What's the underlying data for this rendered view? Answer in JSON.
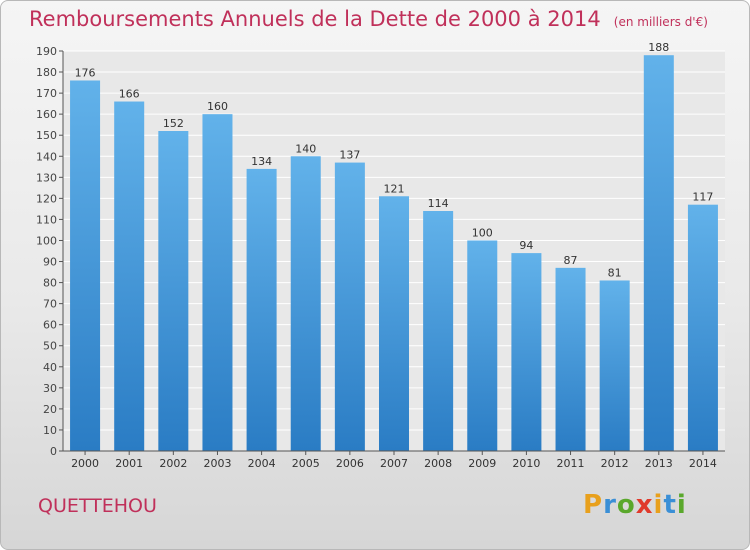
{
  "title": "Remboursements Annuels de la Dette de 2000 à 2014",
  "subtitle": "(en milliers d'€)",
  "commune": "QUETTEHOU",
  "logo": {
    "letters": [
      "P",
      "r",
      "o",
      "x",
      "i",
      "t",
      "i"
    ],
    "colors": [
      "#e8a01c",
      "#3a8fd6",
      "#5aa82c",
      "#e03a2c",
      "#e8a01c",
      "#3a8fd6",
      "#5aa82c"
    ]
  },
  "colors": {
    "bar_top": "#62b2ea",
    "bar_bottom": "#2a7cc4",
    "text": "#c0305a",
    "grid": "#ffffff"
  },
  "chart_data": {
    "type": "bar",
    "title": "Remboursements Annuels de la Dette de 2000 à 2014",
    "subtitle": "(en milliers d'€)",
    "categories": [
      "2000",
      "2001",
      "2002",
      "2003",
      "2004",
      "2005",
      "2006",
      "2007",
      "2008",
      "2009",
      "2010",
      "2011",
      "2012",
      "2013",
      "2014"
    ],
    "values": [
      176,
      166,
      152,
      160,
      134,
      140,
      137,
      121,
      114,
      100,
      94,
      87,
      81,
      188,
      117
    ],
    "ylim": [
      0,
      190
    ],
    "yticks": [
      0,
      10,
      20,
      30,
      40,
      50,
      60,
      70,
      80,
      90,
      100,
      110,
      120,
      130,
      140,
      150,
      160,
      170,
      180,
      190
    ],
    "grid": true,
    "data_labels": true
  }
}
